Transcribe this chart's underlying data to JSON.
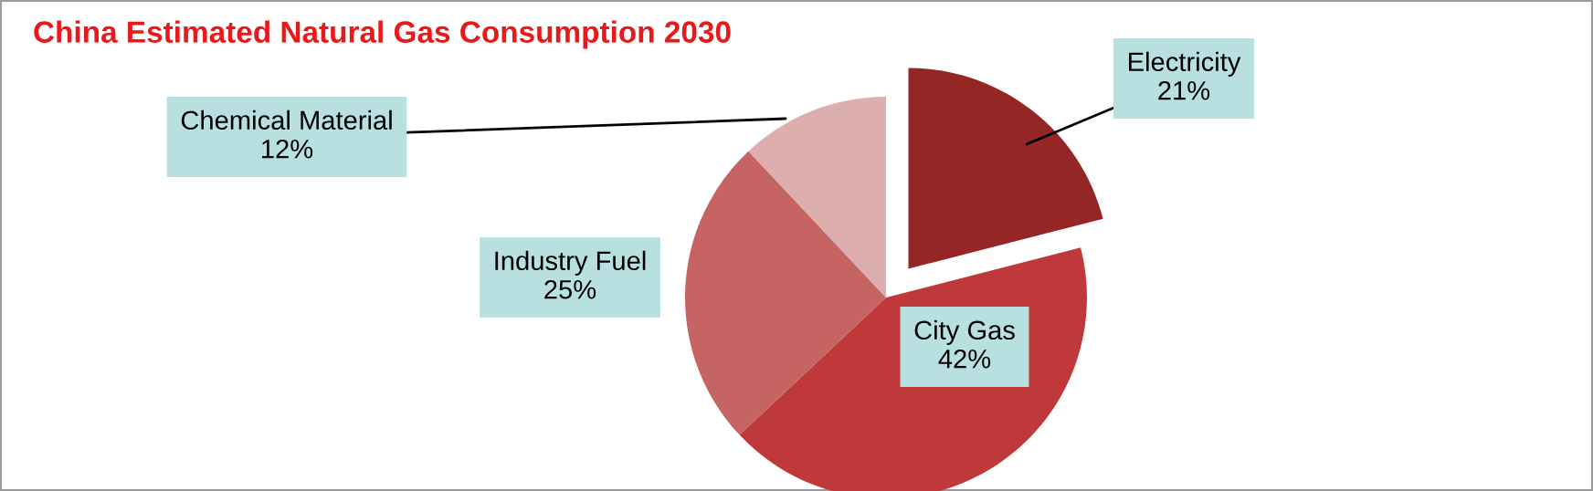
{
  "chart_data": {
    "type": "pie",
    "title": "China Estimated Natural Gas Consumption 2030",
    "categories": [
      "Electricity",
      "City Gas",
      "Industry Fuel",
      "Chemical Material"
    ],
    "values": [
      21,
      42,
      25,
      12
    ],
    "colors": [
      "#962626",
      "#c0393a",
      "#c66464",
      "#dcaeae"
    ],
    "value_labels": [
      "21%",
      "42%",
      "25%",
      "12%"
    ],
    "legend": false
  }
}
